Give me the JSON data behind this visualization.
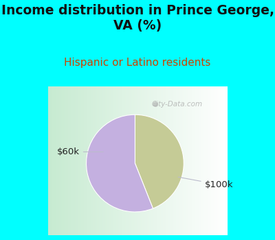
{
  "title": "Income distribution in Prince George,\nVA (%)",
  "subtitle": "Hispanic or Latino residents",
  "slices": [
    {
      "label": "$60k",
      "value": 44,
      "color": "#c5cb96"
    },
    {
      "label": "$100k",
      "value": 56,
      "color": "#c4b0e0"
    }
  ],
  "title_fontsize": 13.5,
  "subtitle_fontsize": 11,
  "title_color": "#111111",
  "subtitle_color": "#cc4400",
  "bg_color_top": "#00ffff",
  "chart_bg_left": "#c8f0d8",
  "chart_bg_right": "#f0f8ff",
  "watermark": "City-Data.com",
  "startangle": 90
}
